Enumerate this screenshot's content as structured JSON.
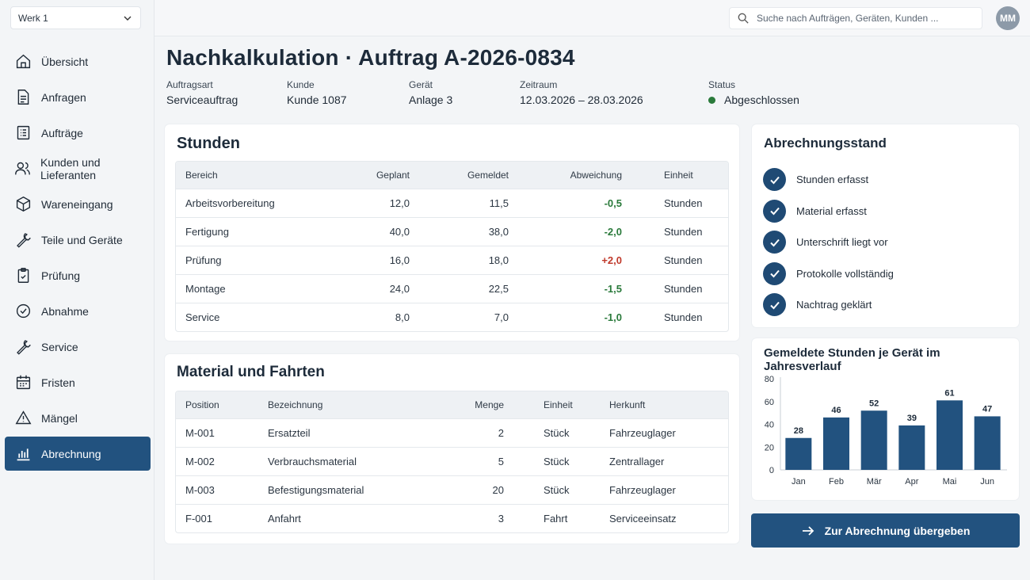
{
  "sidebar": {
    "plant_select": "Werk 1",
    "items": [
      {
        "label": "Übersicht",
        "icon": "home-icon"
      },
      {
        "label": "Anfragen",
        "icon": "document-icon"
      },
      {
        "label": "Aufträge",
        "icon": "list-icon"
      },
      {
        "label": "Kunden und Lieferanten",
        "icon": "users-icon"
      },
      {
        "label": "Wareneingang",
        "icon": "box-icon"
      },
      {
        "label": "Teile und Geräte",
        "icon": "wrench-icon"
      },
      {
        "label": "Prüfung",
        "icon": "clipboard-icon"
      },
      {
        "label": "Abnahme",
        "icon": "check-circle-icon"
      },
      {
        "label": "Service",
        "icon": "wrench-icon"
      },
      {
        "label": "Fristen",
        "icon": "calendar-icon"
      },
      {
        "label": "Mängel",
        "icon": "warning-icon"
      },
      {
        "label": "Abrechnung",
        "icon": "bar-chart-icon",
        "active": true
      }
    ]
  },
  "topbar": {
    "search_placeholder": "Suche nach Aufträgen, Geräten, Kunden ...",
    "avatar_initials": "MM"
  },
  "header": {
    "title": "Nachkalkulation · Auftrag A-2026-0834",
    "meta": [
      {
        "label": "Auftragsart",
        "value": "Serviceauftrag"
      },
      {
        "label": "Kunde",
        "value": "Kunde 1087"
      },
      {
        "label": "Gerät",
        "value": "Anlage 3"
      },
      {
        "label": "Zeitraum",
        "value": "12.03.2026 – 28.03.2026"
      },
      {
        "label": "Status",
        "value": "Abgeschlossen"
      }
    ]
  },
  "hours": {
    "title": "Stunden",
    "columns": [
      "Bereich",
      "Geplant",
      "Gemeldet",
      "Abweichung",
      "Einheit"
    ],
    "rows": [
      {
        "area": "Arbeitsvorbereitung",
        "planned": "12,0",
        "reported": "11,5",
        "deviation": "-0,5",
        "unit": "Stunden"
      },
      {
        "area": "Fertigung",
        "planned": "40,0",
        "reported": "38,0",
        "deviation": "-2,0",
        "unit": "Stunden"
      },
      {
        "area": "Prüfung",
        "planned": "16,0",
        "reported": "18,0",
        "deviation": "+2,0",
        "unit": "Stunden"
      },
      {
        "area": "Montage",
        "planned": "24,0",
        "reported": "22,5",
        "deviation": "-1,5",
        "unit": "Stunden"
      },
      {
        "area": "Service",
        "planned": "8,0",
        "reported": "7,0",
        "deviation": "-1,0",
        "unit": "Stunden"
      }
    ]
  },
  "material": {
    "title": "Material und Fahrten",
    "columns": [
      "Position",
      "Bezeichnung",
      "Menge",
      "Einheit",
      "Herkunft"
    ],
    "rows": [
      {
        "position": "M-001",
        "name": "Ersatzteil",
        "qty": "2",
        "unit": "Stück",
        "origin": "Fahrzeuglager"
      },
      {
        "position": "M-002",
        "name": "Verbrauchsmaterial",
        "qty": "5",
        "unit": "Stück",
        "origin": "Zentrallager"
      },
      {
        "position": "M-003",
        "name": "Befestigungsmaterial",
        "qty": "20",
        "unit": "Stück",
        "origin": "Fahrzeuglager"
      },
      {
        "position": "F-001",
        "name": "Anfahrt",
        "qty": "3",
        "unit": "Fahrt",
        "origin": "Serviceeinsatz"
      }
    ]
  },
  "billing_status": {
    "title": "Abrechnungsstand",
    "items": [
      "Stunden erfasst",
      "Material erfasst",
      "Unterschrift liegt vor",
      "Protokolle vollständig",
      "Nachtrag geklärt"
    ]
  },
  "chart_data": {
    "type": "bar",
    "title": "Gemeldete Stunden je Gerät im Jahresverlauf",
    "categories": [
      "Jan",
      "Feb",
      "Mär",
      "Apr",
      "Mai",
      "Jun"
    ],
    "values": [
      28,
      46,
      52,
      39,
      61,
      47
    ],
    "yticks": [
      0,
      20,
      40,
      60,
      80
    ],
    "ylim": [
      0,
      80
    ],
    "xlabel": "",
    "ylabel": "",
    "grid": false,
    "bar_color": "#22527f"
  },
  "actions": {
    "submit_label": "Zur Abrechnung übergeben"
  },
  "colors": {
    "accent": "#22527f",
    "negative_deviation": "#2a7a3b",
    "positive_deviation": "#c0392b",
    "status_ok": "#2a7a3b"
  }
}
